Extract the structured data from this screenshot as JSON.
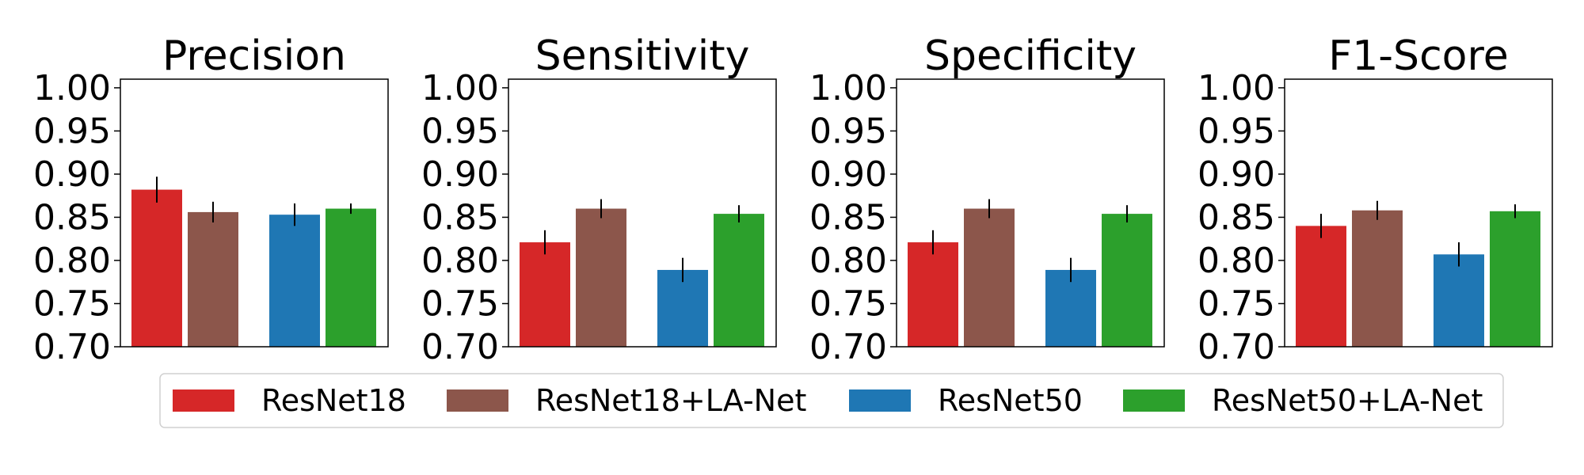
{
  "chart_data": [
    {
      "type": "bar",
      "title": "Precision",
      "categories": [
        "ResNet18",
        "ResNet18+LA-Net",
        "ResNet50",
        "ResNet50+LA-Net"
      ],
      "values": [
        0.882,
        0.856,
        0.853,
        0.86
      ],
      "errors": [
        0.015,
        0.012,
        0.013,
        0.006
      ],
      "ylim": [
        0.7,
        1.01
      ],
      "yticks": [
        "0.70",
        "0.75",
        "0.80",
        "0.85",
        "0.90",
        "0.95",
        "1.00"
      ]
    },
    {
      "type": "bar",
      "title": "Sensitivity",
      "categories": [
        "ResNet18",
        "ResNet18+LA-Net",
        "ResNet50",
        "ResNet50+LA-Net"
      ],
      "values": [
        0.821,
        0.86,
        0.789,
        0.854
      ],
      "errors": [
        0.014,
        0.011,
        0.014,
        0.01
      ],
      "ylim": [
        0.7,
        1.01
      ],
      "yticks": [
        "0.70",
        "0.75",
        "0.80",
        "0.85",
        "0.90",
        "0.95",
        "1.00"
      ]
    },
    {
      "type": "bar",
      "title": "Specificity",
      "categories": [
        "ResNet18",
        "ResNet18+LA-Net",
        "ResNet50",
        "ResNet50+LA-Net"
      ],
      "values": [
        0.821,
        0.86,
        0.789,
        0.854
      ],
      "errors": [
        0.014,
        0.011,
        0.014,
        0.01
      ],
      "ylim": [
        0.7,
        1.01
      ],
      "yticks": [
        "0.70",
        "0.75",
        "0.80",
        "0.85",
        "0.90",
        "0.95",
        "1.00"
      ]
    },
    {
      "type": "bar",
      "title": "F1-Score",
      "categories": [
        "ResNet18",
        "ResNet18+LA-Net",
        "ResNet50",
        "ResNet50+LA-Net"
      ],
      "values": [
        0.84,
        0.858,
        0.807,
        0.857
      ],
      "errors": [
        0.014,
        0.011,
        0.014,
        0.008
      ],
      "ylim": [
        0.7,
        1.01
      ],
      "yticks": [
        "0.70",
        "0.75",
        "0.80",
        "0.85",
        "0.90",
        "0.95",
        "1.00"
      ]
    }
  ],
  "legend": {
    "placement": "bottom-center",
    "entries": [
      {
        "label": "ResNet18",
        "color": "#d62728"
      },
      {
        "label": "ResNet18+LA-Net",
        "color": "#8c564b"
      },
      {
        "label": "ResNet50",
        "color": "#1f77b4"
      },
      {
        "label": "ResNet50+LA-Net",
        "color": "#2ca02c"
      }
    ]
  },
  "grid": false
}
